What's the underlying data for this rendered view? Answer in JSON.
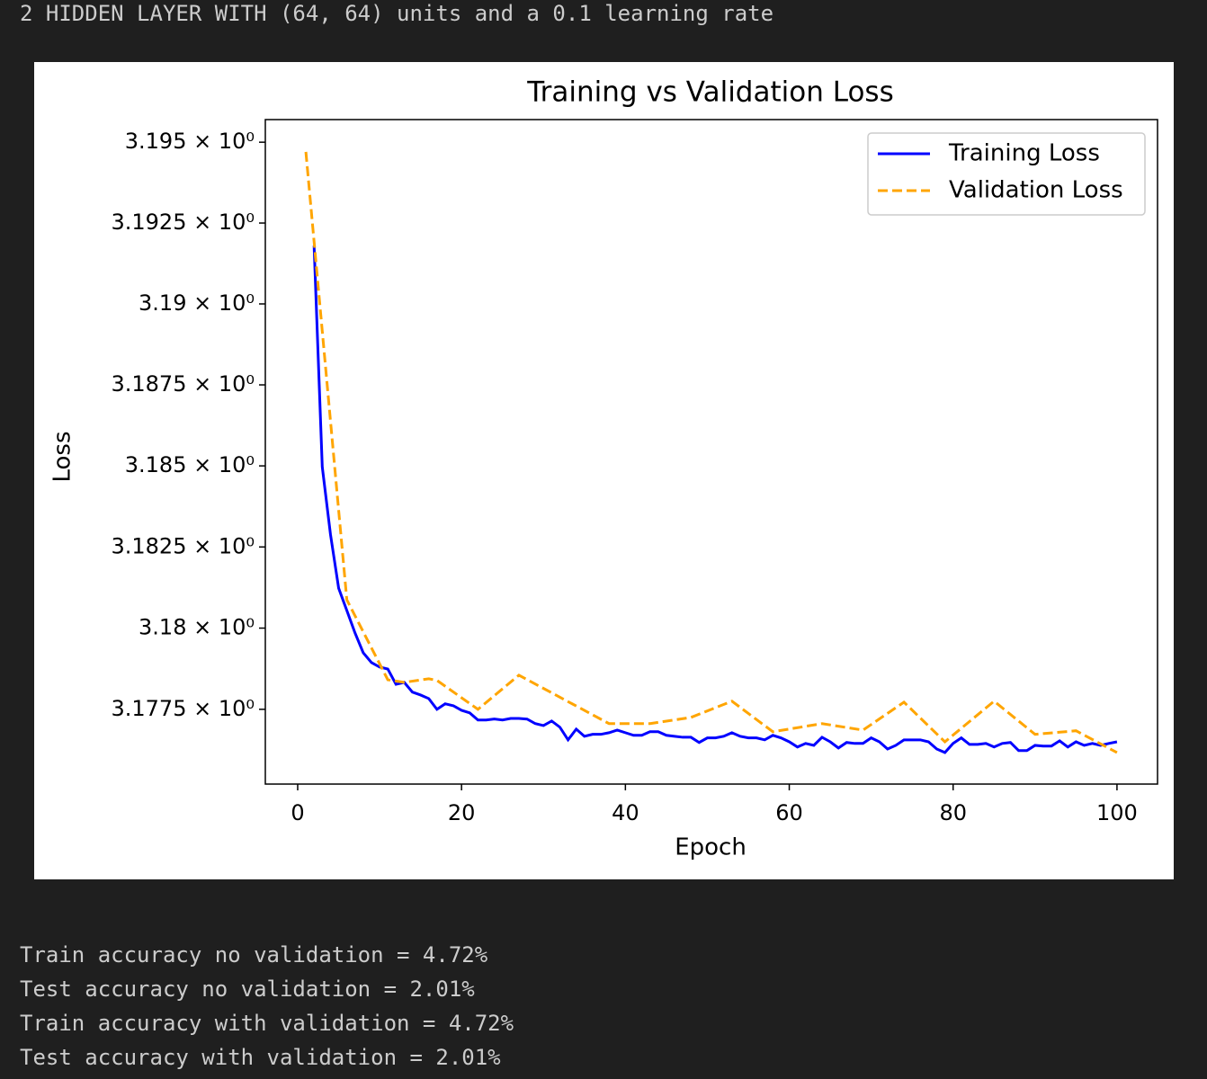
{
  "header": "2 HIDDEN LAYER WITH (64, 64) units and a 0.1 learning rate",
  "chart_data": {
    "type": "line",
    "title": "Training vs Validation Loss",
    "x_label": "Epoch",
    "y_label": "Loss",
    "xlim": [
      -3.95,
      104.95
    ],
    "xticks": [
      0,
      20,
      40,
      60,
      80,
      100
    ],
    "ylim": [
      3.1752,
      3.1957
    ],
    "ylog": true,
    "grid": false,
    "legend": "upper right",
    "yticks": [
      {
        "value": 3.1775,
        "label": "3.1775 × 10⁰"
      },
      {
        "value": 3.18,
        "label": "3.18 × 10⁰"
      },
      {
        "value": 3.1825,
        "label": "3.1825 × 10⁰"
      },
      {
        "value": 3.185,
        "label": "3.185 × 10⁰"
      },
      {
        "value": 3.1875,
        "label": "3.1875 × 10⁰"
      },
      {
        "value": 3.19,
        "label": "3.19 × 10⁰"
      },
      {
        "value": 3.1925,
        "label": "3.1925 × 10⁰"
      },
      {
        "value": 3.195,
        "label": "3.195 × 10⁰"
      }
    ],
    "series": [
      {
        "name": "Training Loss",
        "color": "#0000ff",
        "dash": false,
        "x": [
          2,
          3,
          4,
          5,
          6,
          7,
          8,
          9,
          10,
          11,
          12,
          13,
          14,
          15,
          16,
          17,
          18,
          19,
          20,
          21,
          22,
          23,
          24,
          25,
          26,
          27,
          28,
          29,
          30,
          31,
          32,
          33,
          34,
          35,
          36,
          37,
          38,
          39,
          40,
          41,
          42,
          43,
          44,
          45,
          46,
          47,
          48,
          49,
          50,
          51,
          52,
          53,
          54,
          55,
          56,
          57,
          58,
          59,
          60,
          61,
          62,
          63,
          64,
          65,
          66,
          67,
          68,
          69,
          70,
          71,
          72,
          73,
          74,
          75,
          76,
          77,
          78,
          79,
          80,
          81,
          82,
          83,
          84,
          85,
          86,
          87,
          88,
          89,
          90,
          91,
          92,
          93,
          94,
          95,
          96,
          97,
          98,
          99,
          100
        ],
        "values": [
          3.1918,
          3.18497,
          3.18289,
          3.18123,
          3.18054,
          3.17985,
          3.17924,
          3.17894,
          3.1788,
          3.17874,
          3.17827,
          3.17833,
          3.17803,
          3.17794,
          3.17783,
          3.1775,
          3.17767,
          3.17761,
          3.17747,
          3.17739,
          3.17717,
          3.17717,
          3.1772,
          3.17717,
          3.17722,
          3.17722,
          3.1772,
          3.17706,
          3.177,
          3.17714,
          3.17695,
          3.17656,
          3.17689,
          3.17667,
          3.17673,
          3.17673,
          3.17678,
          3.17686,
          3.17678,
          3.1767,
          3.1767,
          3.17681,
          3.17681,
          3.1767,
          3.17667,
          3.17664,
          3.17664,
          3.17648,
          3.17662,
          3.17662,
          3.17667,
          3.17678,
          3.17667,
          3.17662,
          3.17662,
          3.17656,
          3.1767,
          3.17662,
          3.1765,
          3.17634,
          3.17645,
          3.17639,
          3.17664,
          3.1765,
          3.17631,
          3.17648,
          3.17645,
          3.17645,
          3.17662,
          3.1765,
          3.17628,
          3.17639,
          3.17656,
          3.17656,
          3.17656,
          3.1765,
          3.17628,
          3.17617,
          3.17645,
          3.17662,
          3.17642,
          3.17642,
          3.17645,
          3.17634,
          3.17645,
          3.17648,
          3.17623,
          3.17623,
          3.17639,
          3.17637,
          3.17637,
          3.17653,
          3.17634,
          3.1765,
          3.17639,
          3.17645,
          3.17639,
          3.17645,
          3.1765
        ]
      },
      {
        "name": "Validation Loss",
        "color": "#ffa500",
        "dash": true,
        "x": [
          1,
          6,
          11,
          13,
          16,
          17,
          22,
          27,
          38,
          43,
          48,
          53,
          58,
          64,
          69,
          74,
          79,
          85,
          90,
          95,
          100
        ],
        "values": [
          3.1947,
          3.18087,
          3.17841,
          3.17833,
          3.17844,
          3.17839,
          3.1775,
          3.17855,
          3.17706,
          3.17706,
          3.17725,
          3.17775,
          3.17681,
          3.17706,
          3.17686,
          3.17772,
          3.1765,
          3.17775,
          3.17673,
          3.17684,
          3.17617
        ]
      }
    ]
  },
  "output_lines": [
    "Train accuracy no validation = 4.72%",
    "Test accuracy no validation = 2.01%",
    "Train accuracy with validation = 4.72%",
    "Test accuracy with validation = 2.01%"
  ]
}
